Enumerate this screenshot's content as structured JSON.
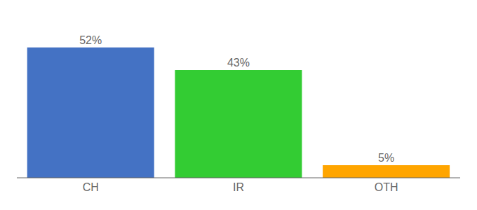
{
  "chart_data": {
    "type": "bar",
    "categories": [
      "CH",
      "IR",
      "OTH"
    ],
    "values": [
      52,
      43,
      5
    ],
    "value_labels": [
      "52%",
      "43%",
      "5%"
    ],
    "colors": [
      "#4472C4",
      "#33CC33",
      "#FFA500"
    ],
    "ylim": [
      0,
      62
    ],
    "data_labels": true,
    "tick_labels": "x",
    "grid": false
  }
}
